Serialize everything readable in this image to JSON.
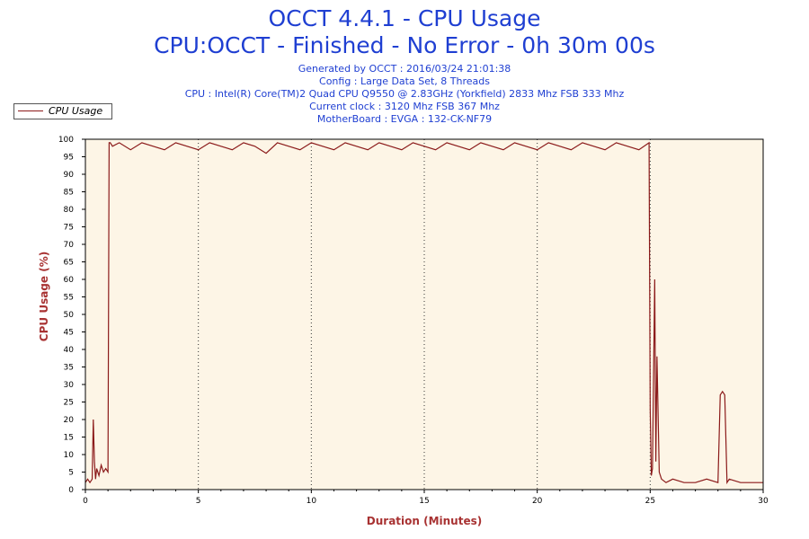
{
  "header": {
    "title": "OCCT 4.4.1 - CPU Usage",
    "subtitle": "CPU:OCCT - Finished - No Error - 0h 30m 00s",
    "info": [
      "Generated by OCCT : 2016/03/24 21:01:38",
      "Config : Large Data Set, 8 Threads",
      "CPU : Intel(R) Core(TM)2 Quad CPU Q9550 @ 2.83GHz (Yorkfield) 2833 Mhz FSB 333 Mhz",
      "Current clock : 3120 Mhz FSB 367 Mhz",
      "MotherBoard : EVGA : 132-CK-NF79"
    ]
  },
  "legend": {
    "label": "CPU Usage"
  },
  "colors": {
    "line": "#8b1a1a",
    "plot_bg": "#fdf5e6",
    "title": "#1f3fd2",
    "axis_title": "#a83232"
  },
  "chart_data": {
    "type": "line",
    "title": "OCCT 4.4.1 - CPU Usage",
    "xlabel": "Duration (Minutes)",
    "ylabel": "CPU Usage (%)",
    "xlim": [
      0,
      30
    ],
    "ylim": [
      0,
      100
    ],
    "xticks": [
      0,
      5,
      10,
      15,
      20,
      25,
      30
    ],
    "yticks": [
      0,
      5,
      10,
      15,
      20,
      25,
      30,
      35,
      40,
      45,
      50,
      55,
      60,
      65,
      70,
      75,
      80,
      85,
      90,
      95,
      100
    ],
    "grid": {
      "x": true,
      "y": false
    },
    "legend_position": "top-left",
    "series": [
      {
        "name": "CPU Usage",
        "x": [
          0,
          0.1,
          0.2,
          0.3,
          0.35,
          0.4,
          0.45,
          0.5,
          0.6,
          0.7,
          0.8,
          0.9,
          1.0,
          1.05,
          1.1,
          1.2,
          1.5,
          2,
          2.5,
          3,
          3.5,
          4,
          4.5,
          5,
          5.5,
          6,
          6.5,
          7,
          7.5,
          8,
          8.5,
          9,
          9.5,
          10,
          10.5,
          11,
          11.5,
          12,
          12.5,
          13,
          13.5,
          14,
          14.5,
          15,
          15.5,
          16,
          16.5,
          17,
          17.5,
          18,
          18.5,
          19,
          19.5,
          20,
          20.5,
          21,
          21.5,
          22,
          22.5,
          23,
          23.5,
          24,
          24.5,
          24.95,
          25.0,
          25.05,
          25.1,
          25.2,
          25.25,
          25.3,
          25.4,
          25.5,
          25.7,
          26,
          26.5,
          27,
          27.5,
          28,
          28.1,
          28.2,
          28.3,
          28.4,
          28.5,
          29,
          29.5,
          30
        ],
        "y": [
          2,
          3,
          2,
          3,
          20,
          8,
          3,
          6,
          4,
          7,
          5,
          6,
          5,
          99,
          99,
          98,
          99,
          97,
          99,
          98,
          97,
          99,
          98,
          97,
          99,
          98,
          97,
          99,
          98,
          96,
          99,
          98,
          97,
          99,
          98,
          97,
          99,
          98,
          97,
          99,
          98,
          97,
          99,
          98,
          97,
          99,
          98,
          97,
          99,
          98,
          97,
          99,
          98,
          97,
          99,
          98,
          97,
          99,
          98,
          97,
          99,
          98,
          97,
          99,
          23,
          4,
          6,
          60,
          8,
          38,
          5,
          3,
          2,
          3,
          2,
          2,
          3,
          2,
          27,
          28,
          27,
          2,
          3,
          2,
          2,
          2
        ]
      }
    ]
  }
}
